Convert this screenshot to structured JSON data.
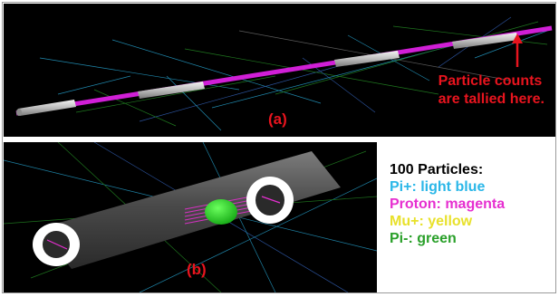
{
  "panel_a": {
    "caption": "(a)",
    "note_line1": "Particle counts",
    "note_line2": "are tallied here."
  },
  "panel_b": {
    "caption": "(b)"
  },
  "legend": {
    "title": "100 Particles:",
    "items": [
      {
        "text": "Pi+: light blue",
        "color": "#2bb7e8"
      },
      {
        "text": "Proton: magenta",
        "color": "#e62fd0"
      },
      {
        "text": "Mu+: yellow",
        "color": "#e8e12b"
      },
      {
        "text": "Pi-: green",
        "color": "#2aa02a"
      }
    ]
  },
  "colors": {
    "annotation_red": "#e8141e",
    "beam_magenta": "#d01fd6",
    "pipe_gray": "#cfcfcf",
    "particle_green": "#22c52a"
  }
}
